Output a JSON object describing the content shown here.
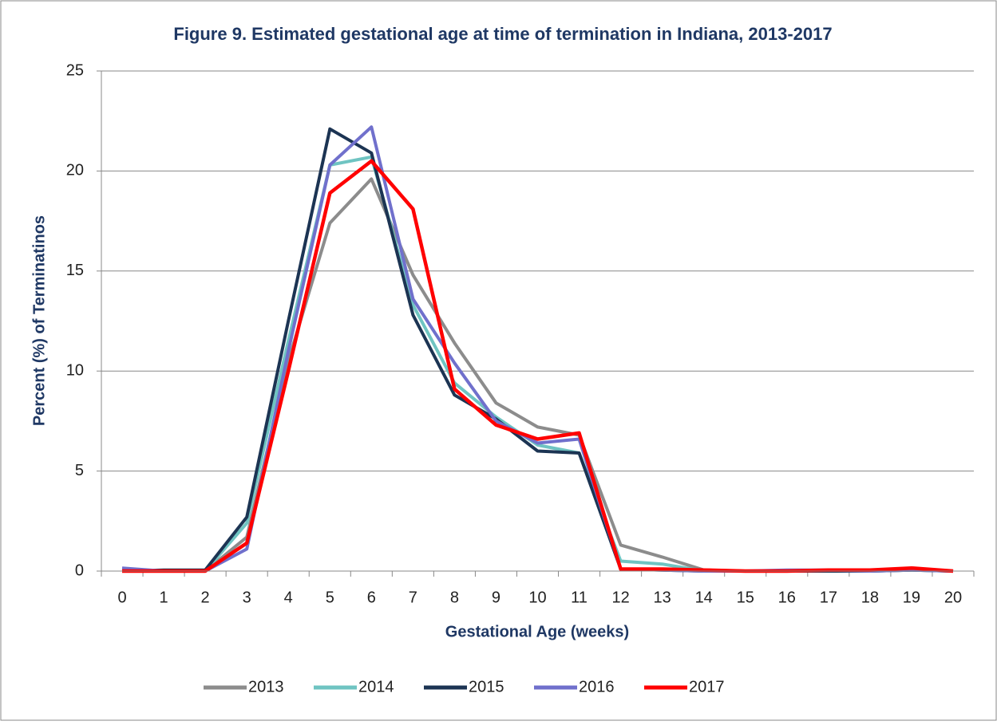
{
  "chart_data": {
    "type": "line",
    "title": "Figure 9. Estimated gestational age at time of termination in Indiana, 2013-2017",
    "x_label": "Gestational Age (weeks)",
    "y_label": "Percent (%) of Terminatinos",
    "categories": [
      0,
      1,
      2,
      3,
      4,
      5,
      6,
      7,
      8,
      9,
      10,
      11,
      12,
      13,
      14,
      15,
      16,
      17,
      18,
      19,
      20
    ],
    "series": [
      {
        "name": "2013",
        "color": "#8c8c8c",
        "values": [
          0,
          0,
          0,
          1.7,
          10.5,
          17.4,
          19.6,
          14.8,
          11.4,
          8.4,
          7.2,
          6.8,
          1.3,
          0.7,
          0.05,
          0,
          0,
          0,
          0,
          0.1,
          0
        ]
      },
      {
        "name": "2014",
        "color": "#6fc4c2",
        "values": [
          0.1,
          0,
          0,
          2.4,
          11.5,
          20.3,
          20.7,
          13.3,
          9.4,
          7.7,
          6.3,
          5.9,
          0.5,
          0.35,
          0,
          0,
          0,
          0,
          0,
          0.05,
          0
        ]
      },
      {
        "name": "2015",
        "color": "#1c3453",
        "values": [
          0,
          0.05,
          0.05,
          2.7,
          12.5,
          22.1,
          20.9,
          12.8,
          8.8,
          7.6,
          6.0,
          5.9,
          0.1,
          0.05,
          0,
          0,
          0,
          0,
          0,
          0.05,
          0
        ]
      },
      {
        "name": "2016",
        "color": "#7070cc",
        "values": [
          0.15,
          0,
          0,
          1.1,
          11,
          20.3,
          22.2,
          13.6,
          10.4,
          7.5,
          6.4,
          6.6,
          0.1,
          0.05,
          0,
          0,
          0.05,
          0.05,
          0,
          0.05,
          0
        ]
      },
      {
        "name": "2017",
        "color": "#ff0000",
        "values": [
          0,
          0,
          0,
          1.4,
          10,
          18.9,
          20.5,
          18.1,
          9.1,
          7.3,
          6.6,
          6.9,
          0.1,
          0.1,
          0.05,
          0,
          0,
          0.05,
          0.05,
          0.15,
          0
        ]
      }
    ],
    "ylim": [
      0,
      25
    ],
    "yticks": [
      0,
      5,
      10,
      15,
      20,
      25
    ],
    "grid": true,
    "legend": "bottom"
  }
}
